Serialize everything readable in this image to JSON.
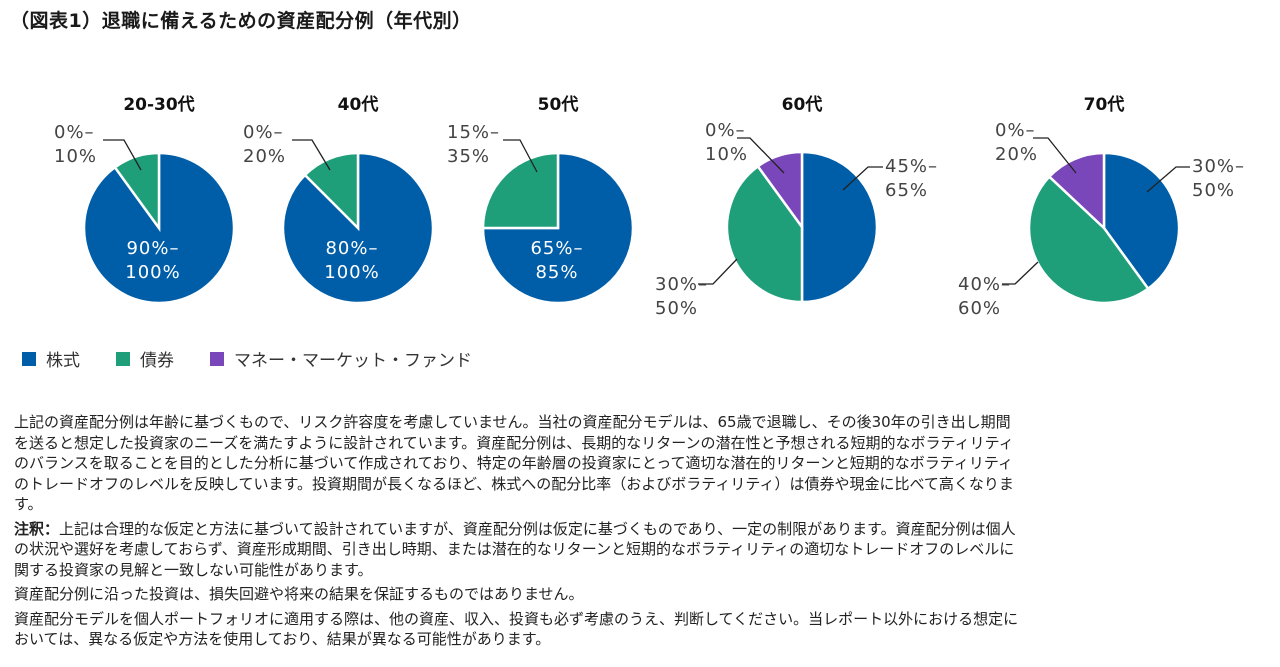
{
  "title": "（図表1）退職に備えるための資産配分例（年代別）",
  "colors": {
    "stocks": "#005ea8",
    "bonds": "#1f9e7a",
    "mmf": "#7a47bb"
  },
  "chart_data": [
    {
      "type": "pie",
      "title": "20-30代",
      "slices": [
        {
          "series": "株式",
          "value": 90,
          "label": "90%–\n100%"
        },
        {
          "series": "債券",
          "value": 10,
          "label": "0%–\n10%"
        }
      ]
    },
    {
      "type": "pie",
      "title": "40代",
      "slices": [
        {
          "series": "株式",
          "value": 87.5,
          "label": "80%–\n100%"
        },
        {
          "series": "債券",
          "value": 12.5,
          "label": "0%–\n20%"
        }
      ]
    },
    {
      "type": "pie",
      "title": "50代",
      "slices": [
        {
          "series": "株式",
          "value": 75,
          "label": "65%–\n85%"
        },
        {
          "series": "債券",
          "value": 25,
          "label": "15%–\n35%"
        }
      ]
    },
    {
      "type": "pie",
      "title": "60代",
      "slices": [
        {
          "series": "株式",
          "value": 50,
          "label": "45%–\n65%"
        },
        {
          "series": "債券",
          "value": 40,
          "label": "30%–\n50%"
        },
        {
          "series": "マネー・マーケット・ファンド",
          "value": 10,
          "label": "0%–\n10%"
        }
      ]
    },
    {
      "type": "pie",
      "title": "70代",
      "slices": [
        {
          "series": "株式",
          "value": 40,
          "label": "30%–\n50%"
        },
        {
          "series": "債券",
          "value": 47,
          "label": "40%–\n60%"
        },
        {
          "series": "マネー・マーケット・ファンド",
          "value": 13,
          "label": "0%–\n20%"
        }
      ]
    }
  ],
  "legend": [
    {
      "label": "株式",
      "key": "stocks"
    },
    {
      "label": "債券",
      "key": "bonds"
    },
    {
      "label": "マネー・マーケット・ファンド",
      "key": "mmf"
    }
  ],
  "notes": {
    "p1": [
      "上記の資産配分例は年齢に基づくもので、リスク許容度を考慮していません。当社の資産配分モデルは、65歳で退職し、その後30年の引き出し期間",
      "を送ると想定した投資家のニーズを満たすように設計されています。資産配分例は、長期的なリターンの潜在性と予想される短期的なボラティリティ",
      "のバランスを取ることを目的とした分析に基づいて作成されており、特定の年齢層の投資家にとって適切な潜在的リターンと短期的なボラティリティ",
      "のトレードオフのレベルを反映しています。投資期間が長くなるほど、株式への配分比率（およびボラティリティ）は債券や現金に比べて高くなりま",
      "す。"
    ],
    "p2_label": "注釈：",
    "p2": [
      "上記は合理的な仮定と方法に基づいて設計されていますが、資産配分例は仮定に基づくものであり、一定の制限があります。資産配分例は個人",
      "の状況や選好を考慮しておらず、資産形成期間、引き出し時期、または潜在的なリターンと短期的なボラティリティの適切なトレードオフのレベルに",
      "関する投資家の見解と一致しない可能性があります。"
    ],
    "p3": [
      "資産配分例に沿った投資は、損失回避や将来の結果を保証するものではありません。"
    ],
    "p4": [
      "資産配分モデルを個人ポートフォリオに適用する際は、他の資産、収入、投資も必ず考慮のうえ、判断してください。当レポート以外における想定に",
      "おいては、異なる仮定や方法を使用しており、結果が異なる可能性があります。"
    ]
  }
}
